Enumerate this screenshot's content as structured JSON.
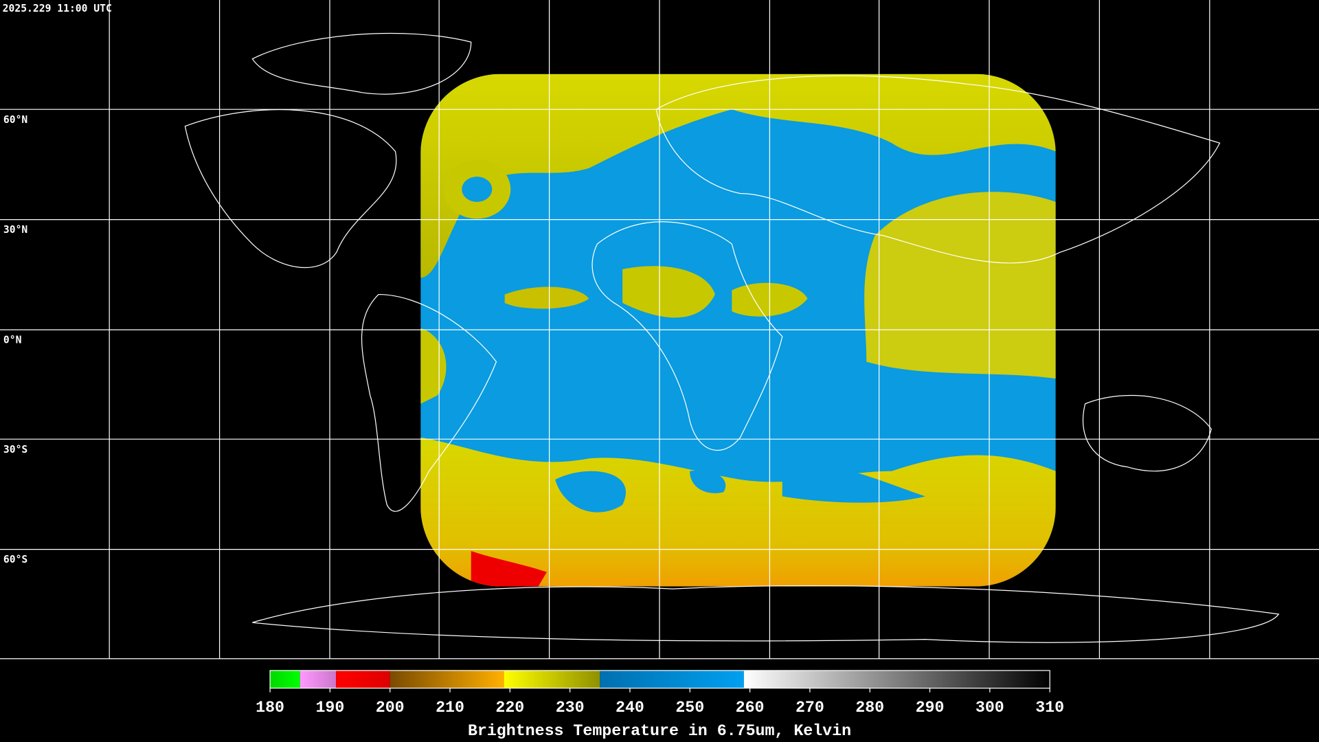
{
  "header": {
    "timestamp": "2025.229 11:00 UTC"
  },
  "map": {
    "lat_labels": [
      "60°N",
      "30°N",
      "0°N",
      "30°S",
      "60°S"
    ]
  },
  "colorbar": {
    "title": "Brightness Temperature in 6.75um, Kelvin",
    "range": [
      180,
      310
    ],
    "ticks": [
      180,
      190,
      200,
      210,
      220,
      230,
      240,
      250,
      260,
      270,
      280,
      290,
      300,
      310
    ],
    "segments": [
      {
        "from": 180,
        "to": 185,
        "colors": [
          "#00d800",
          "#00ff00"
        ]
      },
      {
        "from": 185,
        "to": 191,
        "colors": [
          "#ff99ff",
          "#cc77cc"
        ]
      },
      {
        "from": 191,
        "to": 200,
        "colors": [
          "#ff0000",
          "#dd0000"
        ]
      },
      {
        "from": 200,
        "to": 219,
        "colors": [
          "#7a4a00",
          "#ffb000"
        ]
      },
      {
        "from": 219,
        "to": 235,
        "colors": [
          "#ffff00",
          "#909000"
        ]
      },
      {
        "from": 235,
        "to": 259,
        "colors": [
          "#0070b0",
          "#00a0f0"
        ]
      },
      {
        "from": 259,
        "to": 310,
        "colors": [
          "#ffffff",
          "#000000"
        ]
      }
    ]
  }
}
